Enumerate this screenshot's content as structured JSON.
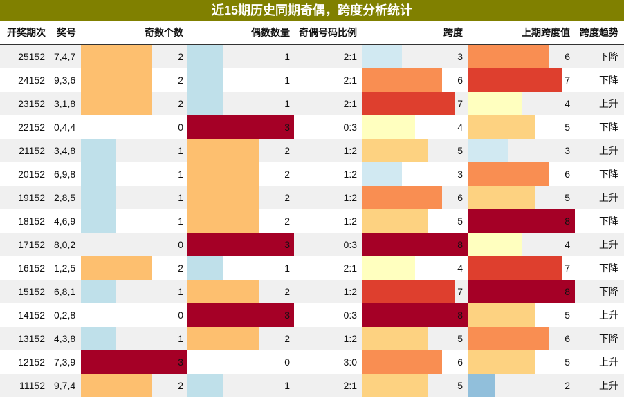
{
  "title": "近15期历史同期奇偶，跨度分析统计",
  "headers": {
    "period": "开奖期次",
    "numbers": "奖号",
    "odd": "奇数个数",
    "even": "偶数数量",
    "ratio": "奇偶号码比例",
    "span": "跨度",
    "prev_span": "上期跨度值",
    "trend": "跨度趋势"
  },
  "count_max": 3,
  "span_max": 8,
  "count_colors": {
    "1": "#bfe0ea",
    "2": "#fdbf6f",
    "3": "#a50026"
  },
  "span_colors": {
    "2": "#91bfdb",
    "3": "#d1e9f2",
    "4": "#ffffbf",
    "5": "#fdd281",
    "6": "#f98e52",
    "7": "#de3f2e",
    "8": "#a50026"
  },
  "rows": [
    {
      "period": "25152",
      "numbers": "7,4,7",
      "odd": 2,
      "even": 1,
      "ratio": "2:1",
      "span": 3,
      "prev_span": 6,
      "trend": "下降"
    },
    {
      "period": "24152",
      "numbers": "9,3,6",
      "odd": 2,
      "even": 1,
      "ratio": "2:1",
      "span": 6,
      "prev_span": 7,
      "trend": "下降"
    },
    {
      "period": "23152",
      "numbers": "3,1,8",
      "odd": 2,
      "even": 1,
      "ratio": "2:1",
      "span": 7,
      "prev_span": 4,
      "trend": "上升"
    },
    {
      "period": "22152",
      "numbers": "0,4,4",
      "odd": 0,
      "even": 3,
      "ratio": "0:3",
      "span": 4,
      "prev_span": 5,
      "trend": "下降"
    },
    {
      "period": "21152",
      "numbers": "3,4,8",
      "odd": 1,
      "even": 2,
      "ratio": "1:2",
      "span": 5,
      "prev_span": 3,
      "trend": "上升"
    },
    {
      "period": "20152",
      "numbers": "6,9,8",
      "odd": 1,
      "even": 2,
      "ratio": "1:2",
      "span": 3,
      "prev_span": 6,
      "trend": "下降"
    },
    {
      "period": "19152",
      "numbers": "2,8,5",
      "odd": 1,
      "even": 2,
      "ratio": "1:2",
      "span": 6,
      "prev_span": 5,
      "trend": "上升"
    },
    {
      "period": "18152",
      "numbers": "4,6,9",
      "odd": 1,
      "even": 2,
      "ratio": "1:2",
      "span": 5,
      "prev_span": 8,
      "trend": "下降"
    },
    {
      "period": "17152",
      "numbers": "8,0,2",
      "odd": 0,
      "even": 3,
      "ratio": "0:3",
      "span": 8,
      "prev_span": 4,
      "trend": "上升"
    },
    {
      "period": "16152",
      "numbers": "1,2,5",
      "odd": 2,
      "even": 1,
      "ratio": "2:1",
      "span": 4,
      "prev_span": 7,
      "trend": "下降"
    },
    {
      "period": "15152",
      "numbers": "6,8,1",
      "odd": 1,
      "even": 2,
      "ratio": "1:2",
      "span": 7,
      "prev_span": 8,
      "trend": "下降"
    },
    {
      "period": "14152",
      "numbers": "0,2,8",
      "odd": 0,
      "even": 3,
      "ratio": "0:3",
      "span": 8,
      "prev_span": 5,
      "trend": "上升"
    },
    {
      "period": "13152",
      "numbers": "4,3,8",
      "odd": 1,
      "even": 2,
      "ratio": "1:2",
      "span": 5,
      "prev_span": 6,
      "trend": "下降"
    },
    {
      "period": "12152",
      "numbers": "7,3,9",
      "odd": 3,
      "even": 0,
      "ratio": "3:0",
      "span": 6,
      "prev_span": 5,
      "trend": "上升"
    },
    {
      "period": "11152",
      "numbers": "9,7,4",
      "odd": 2,
      "even": 1,
      "ratio": "2:1",
      "span": 5,
      "prev_span": 2,
      "trend": "上升"
    }
  ]
}
